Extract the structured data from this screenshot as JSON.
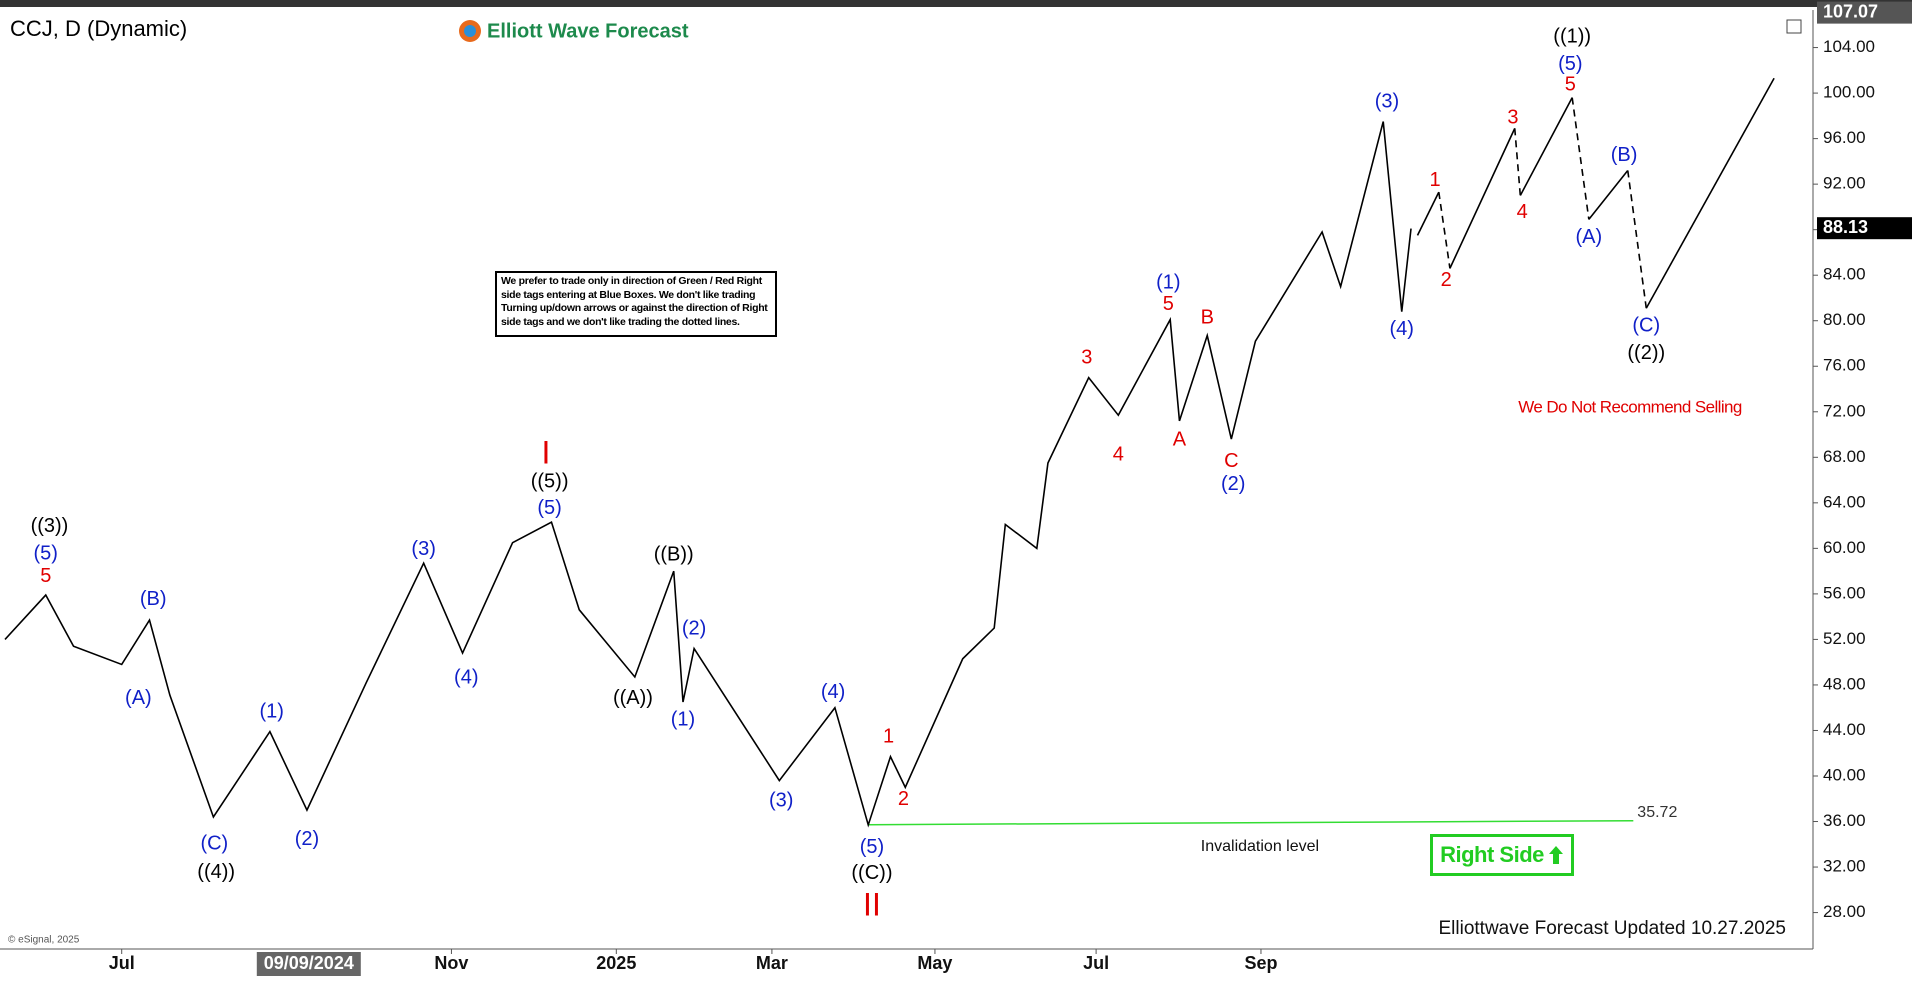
{
  "chart_data": {
    "type": "line",
    "title": "CCJ, D (Dynamic)",
    "logo": "Elliott Wave Forecast",
    "disclaimer": "We prefer to trade only in direction of Green / Red Right side tags entering at Blue Boxes. We don't like trading Turning up/down arrows or against the direction of Right side tags and we don't like trading the dotted lines.",
    "notice": "We Do Not Recommend Selling",
    "right_side": "Right Side",
    "footer": "Elliottwave Forecast Updated 10.27.2025",
    "copyright": "© eSignal, 2025",
    "xlim": [
      0,
      97.6
    ],
    "ylim": [
      24.8,
      107.3
    ],
    "xticks": [
      {
        "value": 6.3,
        "label": "Jul"
      },
      {
        "value": 24.1,
        "label": "Nov"
      },
      {
        "value": 33.0,
        "label": "2025"
      },
      {
        "value": 41.4,
        "label": "Mar"
      },
      {
        "value": 50.2,
        "label": "May"
      },
      {
        "value": 58.9,
        "label": "Jul"
      },
      {
        "value": 67.8,
        "label": "Sep"
      }
    ],
    "cursor_x": {
      "value": 16.4,
      "label": "09/09/2024"
    },
    "yticks": [
      {
        "value": 28,
        "label": "28.00"
      },
      {
        "value": 32,
        "label": "32.00"
      },
      {
        "value": 36,
        "label": "36.00"
      },
      {
        "value": 40,
        "label": "40.00"
      },
      {
        "value": 44,
        "label": "44.00"
      },
      {
        "value": 48,
        "label": "48.00"
      },
      {
        "value": 52,
        "label": "52.00"
      },
      {
        "value": 56,
        "label": "56.00"
      },
      {
        "value": 60,
        "label": "60.00"
      },
      {
        "value": 64,
        "label": "64.00"
      },
      {
        "value": 68,
        "label": "68.00"
      },
      {
        "value": 72,
        "label": "72.00"
      },
      {
        "value": 76,
        "label": "76.00"
      },
      {
        "value": 80,
        "label": "80.00"
      },
      {
        "value": 84,
        "label": "84.00"
      },
      {
        "value": 88,
        "label": "88.00"
      },
      {
        "value": 92,
        "label": "92.00"
      },
      {
        "value": 96,
        "label": "96.00"
      },
      {
        "value": 100,
        "label": "100.00"
      },
      {
        "value": 104,
        "label": "104.00"
      }
    ],
    "high_price": 107.07,
    "last_price": 88.13,
    "series": [
      {
        "color": "#000000",
        "x": [
          0,
          2.2,
          3.7,
          6.3,
          7.8,
          8.9,
          11.25,
          14.3,
          16.3,
          19.5,
          22.6,
          24.7,
          27.4,
          29.5,
          31,
          34,
          36.1,
          36.6,
          37.2,
          41.8,
          44.8,
          46.6,
          47.8,
          48.6,
          51.7,
          53.4,
          54,
          55.7,
          56.3,
          58.5,
          60.1,
          62.9,
          63.4,
          64.9,
          66.2,
          67.5,
          71.1,
          72.1,
          74.4,
          75.4,
          75.9
        ],
        "values": [
          52,
          55.9,
          51.4,
          49.8,
          53.7,
          47.1,
          36.4,
          43.9,
          37,
          48.2,
          58.7,
          50.8,
          60.5,
          62.3,
          54.6,
          48.7,
          58,
          46.5,
          51.2,
          39.6,
          46,
          35.7,
          41.7,
          39,
          50.3,
          53,
          62.1,
          60,
          67.5,
          75,
          71.7,
          80.1,
          71.2,
          78.7,
          69.6,
          78.2,
          87.8,
          83,
          97.5,
          80.8,
          88.1
        ]
      },
      {
        "color": "#000000",
        "x": [
          76.25,
          77.4,
          78.0,
          81.5,
          81.8,
          84.6,
          85.5,
          87.6,
          88.6,
          95.5
        ],
        "values": [
          87.5,
          91.3,
          84.6,
          96.9,
          91.0,
          99.6,
          88.9,
          93.2,
          81.1,
          101.3
        ]
      }
    ],
    "invalidation": {
      "value": 35.72,
      "label": "Invalidation level",
      "x": [
        46.6,
        87.9
      ],
      "color": "#33dd33"
    },
    "annotations": [
      {
        "text": "((3))",
        "x": 2.4,
        "y": 61.9,
        "color": "#000000"
      },
      {
        "text": "(5)",
        "x": 2.2,
        "y": 59.5,
        "color": "#1020c8"
      },
      {
        "text": "5",
        "x": 2.2,
        "y": 57.5,
        "color": "#e00000"
      },
      {
        "text": "(B)",
        "x": 8.0,
        "y": 55.5,
        "color": "#1020c8"
      },
      {
        "text": "(A)",
        "x": 7.2,
        "y": 46.8,
        "color": "#1020c8"
      },
      {
        "text": "(C)",
        "x": 11.3,
        "y": 34.0,
        "color": "#1020c8"
      },
      {
        "text": "((4))",
        "x": 11.4,
        "y": 31.5,
        "color": "#000000"
      },
      {
        "text": "(1)",
        "x": 14.4,
        "y": 45.6,
        "color": "#1020c8"
      },
      {
        "text": "(2)",
        "x": 16.3,
        "y": 34.4,
        "color": "#1020c8"
      },
      {
        "text": "(3)",
        "x": 22.6,
        "y": 59.9,
        "color": "#1020c8"
      },
      {
        "text": "(4)",
        "x": 24.9,
        "y": 48.6,
        "color": "#1020c8"
      },
      {
        "text": "I",
        "x": 29.2,
        "y": 68.2,
        "color": "#e00000"
      },
      {
        "text": "((5))",
        "x": 29.4,
        "y": 65.8,
        "color": "#000000"
      },
      {
        "text": "(5)",
        "x": 29.4,
        "y": 63.5,
        "color": "#1020c8"
      },
      {
        "text": "((B))",
        "x": 36.1,
        "y": 59.4,
        "color": "#000000"
      },
      {
        "text": "((A))",
        "x": 33.9,
        "y": 46.8,
        "color": "#000000"
      },
      {
        "text": "(2)",
        "x": 37.2,
        "y": 52.9,
        "color": "#1020c8"
      },
      {
        "text": "(1)",
        "x": 36.6,
        "y": 44.9,
        "color": "#1020c8"
      },
      {
        "text": "(3)",
        "x": 41.9,
        "y": 37.8,
        "color": "#1020c8"
      },
      {
        "text": "(4)",
        "x": 44.7,
        "y": 47.3,
        "color": "#1020c8"
      },
      {
        "text": "(5)",
        "x": 46.8,
        "y": 33.7,
        "color": "#1020c8"
      },
      {
        "text": "((C))",
        "x": 46.8,
        "y": 31.4,
        "color": "#000000"
      },
      {
        "text": "II",
        "x": 46.8,
        "y": 28.5,
        "color": "#e00000"
      },
      {
        "text": "1",
        "x": 47.7,
        "y": 43.4,
        "color": "#e00000"
      },
      {
        "text": "2",
        "x": 48.5,
        "y": 37.9,
        "color": "#e00000"
      },
      {
        "text": "3",
        "x": 58.4,
        "y": 76.7,
        "color": "#e00000"
      },
      {
        "text": "4",
        "x": 60.1,
        "y": 68.2,
        "color": "#e00000"
      },
      {
        "text": "5",
        "x": 62.8,
        "y": 81.4,
        "color": "#e00000"
      },
      {
        "text": "(1)",
        "x": 62.8,
        "y": 83.3,
        "color": "#1020c8"
      },
      {
        "text": "A",
        "x": 63.4,
        "y": 69.5,
        "color": "#e00000"
      },
      {
        "text": "B",
        "x": 64.9,
        "y": 80.2,
        "color": "#e00000"
      },
      {
        "text": "C",
        "x": 66.2,
        "y": 67.6,
        "color": "#e00000"
      },
      {
        "text": "(2)",
        "x": 66.3,
        "y": 65.6,
        "color": "#1020c8"
      },
      {
        "text": "(3)",
        "x": 74.6,
        "y": 99.2,
        "color": "#1020c8"
      },
      {
        "text": "(4)",
        "x": 75.4,
        "y": 79.2,
        "color": "#1020c8"
      },
      {
        "text": "1",
        "x": 77.2,
        "y": 92.3,
        "color": "#e00000"
      },
      {
        "text": "2",
        "x": 77.8,
        "y": 83.5,
        "color": "#e00000"
      },
      {
        "text": "3",
        "x": 81.4,
        "y": 97.8,
        "color": "#e00000"
      },
      {
        "text": "4",
        "x": 81.9,
        "y": 89.5,
        "color": "#e00000"
      },
      {
        "text": "((1))",
        "x": 84.6,
        "y": 104.9,
        "color": "#000000"
      },
      {
        "text": "(5)",
        "x": 84.5,
        "y": 102.5,
        "color": "#1020c8"
      },
      {
        "text": "5",
        "x": 84.5,
        "y": 100.7,
        "color": "#e00000"
      },
      {
        "text": "(B)",
        "x": 87.4,
        "y": 94.5,
        "color": "#1020c8"
      },
      {
        "text": "(A)",
        "x": 85.5,
        "y": 87.3,
        "color": "#1020c8"
      },
      {
        "text": "(C)",
        "x": 88.6,
        "y": 79.5,
        "color": "#1020c8"
      },
      {
        "text": "((2))",
        "x": 88.6,
        "y": 77.1,
        "color": "#000000"
      }
    ]
  }
}
